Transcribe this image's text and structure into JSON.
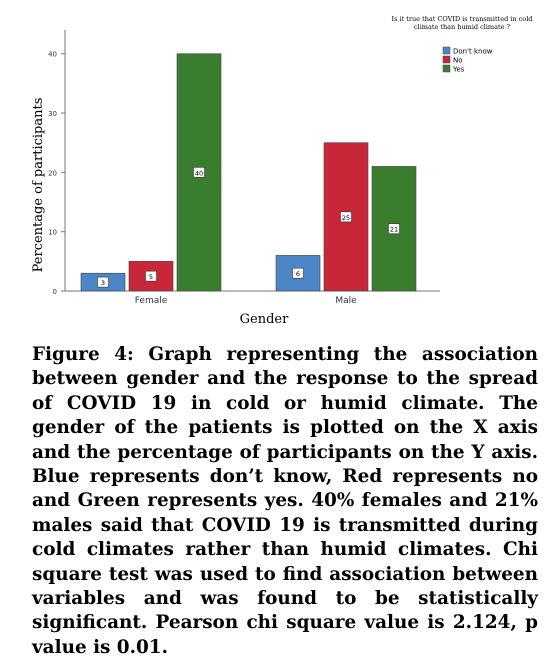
{
  "chart_data": {
    "type": "bar",
    "title": "Is it true that COVID is transmitted in cold climate than humid climate ?",
    "title_lines": [
      "Is it true that COVID is transmitted in cold",
      "climate than humid climate ?"
    ],
    "xlabel": "Gender",
    "ylabel": "Percentage of participants",
    "categories": [
      "Female",
      "Male"
    ],
    "ylim": [
      0,
      44
    ],
    "yticks": [
      0,
      10,
      20,
      30,
      40
    ],
    "grid": false,
    "legend_position": "top-right",
    "series": [
      {
        "name": "Don't know",
        "color": "#4d86c6",
        "values": [
          3,
          6
        ]
      },
      {
        "name": "No",
        "color": "#c8273a",
        "values": [
          5,
          25
        ]
      },
      {
        "name": "Yes",
        "color": "#3b7d2f",
        "values": [
          40,
          21
        ]
      }
    ]
  },
  "caption": {
    "label": "Figure 4:",
    "text": "Graph representing the association between gender and the response to the spread of COVID 19 in cold or humid climate. The gender of the patients is plotted on the X axis and the percentage of participants on the Y axis. Blue represents don’t know, Red represents no and Green represents yes. 40% females and 21% males said that COVID 19 is transmitted during cold climates rather than humid climates. Chi square test was used to find association between variables and was found to be statistically significant. Pearson chi square value is 2.124, p value is 0.01."
  }
}
